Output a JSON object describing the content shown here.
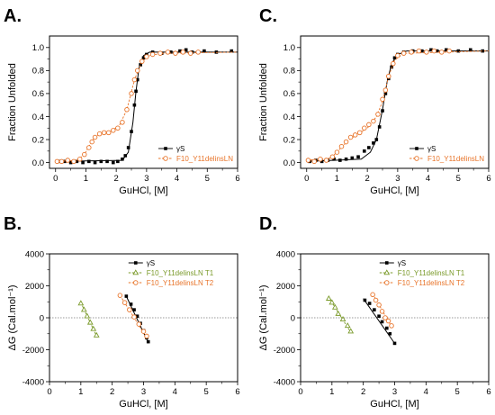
{
  "chart_data": [
    {
      "panel": "A.",
      "type": "line",
      "xlabel": "GuHCl, [M]",
      "ylabel": "Fraction Unfolded",
      "xlim": [
        -0.2,
        6
      ],
      "ylim": [
        -0.05,
        1.1
      ],
      "xticks": [
        "0",
        "1",
        "2",
        "3",
        "4",
        "5",
        "6"
      ],
      "yticks": [
        "0.0",
        "0.2",
        "0.4",
        "0.6",
        "0.8",
        "1.0"
      ],
      "legend_position": "bottom-right",
      "colors": {
        "gammaS": "#000000",
        "mutant": "#e8742a"
      },
      "series": [
        {
          "name": "γS",
          "marker": "filled-square",
          "points": [
            [
              0.1,
              0.01
            ],
            [
              0.3,
              0.01
            ],
            [
              0.5,
              0.0
            ],
            [
              0.7,
              0.01
            ],
            [
              0.9,
              0.0
            ],
            [
              1.1,
              0.01
            ],
            [
              1.3,
              0.0
            ],
            [
              1.5,
              0.01
            ],
            [
              1.7,
              0.01
            ],
            [
              1.9,
              0.0
            ],
            [
              2.05,
              0.01
            ],
            [
              2.2,
              0.03
            ],
            [
              2.3,
              0.06
            ],
            [
              2.4,
              0.13
            ],
            [
              2.5,
              0.27
            ],
            [
              2.6,
              0.5
            ],
            [
              2.65,
              0.62
            ],
            [
              2.7,
              0.72
            ],
            [
              2.8,
              0.85
            ],
            [
              2.9,
              0.91
            ],
            [
              3.0,
              0.94
            ],
            [
              3.2,
              0.96
            ],
            [
              3.5,
              0.95
            ],
            [
              3.8,
              0.96
            ],
            [
              4.1,
              0.97
            ],
            [
              4.3,
              0.98
            ],
            [
              4.5,
              0.96
            ],
            [
              4.9,
              0.97
            ],
            [
              5.3,
              0.96
            ],
            [
              5.8,
              0.97
            ]
          ],
          "fit": [
            [
              0,
              0.01
            ],
            [
              2.2,
              0.02
            ],
            [
              2.4,
              0.09
            ],
            [
              2.55,
              0.35
            ],
            [
              2.65,
              0.62
            ],
            [
              2.75,
              0.82
            ],
            [
              2.9,
              0.93
            ],
            [
              3.1,
              0.96
            ],
            [
              6,
              0.96
            ]
          ]
        },
        {
          "name": "F10_Y11delinsLN",
          "marker": "open-circle",
          "points": [
            [
              0.05,
              0.01
            ],
            [
              0.2,
              0.01
            ],
            [
              0.4,
              0.02
            ],
            [
              0.6,
              0.01
            ],
            [
              0.8,
              0.03
            ],
            [
              0.95,
              0.07
            ],
            [
              1.1,
              0.13
            ],
            [
              1.2,
              0.18
            ],
            [
              1.3,
              0.22
            ],
            [
              1.45,
              0.25
            ],
            [
              1.6,
              0.26
            ],
            [
              1.75,
              0.26
            ],
            [
              1.9,
              0.28
            ],
            [
              2.05,
              0.3
            ],
            [
              2.2,
              0.35
            ],
            [
              2.35,
              0.46
            ],
            [
              2.5,
              0.6
            ],
            [
              2.6,
              0.72
            ],
            [
              2.7,
              0.8
            ],
            [
              2.85,
              0.88
            ],
            [
              3.0,
              0.92
            ],
            [
              3.2,
              0.94
            ],
            [
              3.45,
              0.95
            ],
            [
              3.7,
              0.96
            ],
            [
              3.95,
              0.95
            ],
            [
              4.2,
              0.96
            ],
            [
              4.45,
              0.95
            ],
            [
              4.7,
              0.96
            ]
          ],
          "fit": [
            [
              0,
              0.01
            ],
            [
              0.7,
              0.02
            ],
            [
              0.95,
              0.07
            ],
            [
              1.2,
              0.19
            ],
            [
              1.45,
              0.25
            ],
            [
              1.8,
              0.27
            ],
            [
              2.1,
              0.32
            ],
            [
              2.35,
              0.46
            ],
            [
              2.6,
              0.72
            ],
            [
              2.85,
              0.88
            ],
            [
              3.1,
              0.93
            ],
            [
              3.5,
              0.95
            ],
            [
              6,
              0.96
            ]
          ]
        }
      ]
    },
    {
      "panel": "C.",
      "type": "line",
      "xlabel": "GuHCl, [M]",
      "ylabel": "Fraction Unfolded",
      "xlim": [
        -0.2,
        6
      ],
      "ylim": [
        -0.05,
        1.1
      ],
      "xticks": [
        "0",
        "1",
        "2",
        "3",
        "4",
        "5",
        "6"
      ],
      "yticks": [
        "0.0",
        "0.2",
        "0.4",
        "0.6",
        "0.8",
        "1.0"
      ],
      "legend_position": "bottom-right",
      "colors": {
        "gammaS": "#000000",
        "mutant": "#e8742a"
      },
      "series": [
        {
          "name": "γS",
          "marker": "filled-square",
          "points": [
            [
              0.1,
              0.01
            ],
            [
              0.3,
              0.02
            ],
            [
              0.5,
              0.01
            ],
            [
              0.7,
              0.02
            ],
            [
              0.9,
              0.03
            ],
            [
              1.1,
              0.02
            ],
            [
              1.3,
              0.03
            ],
            [
              1.5,
              0.04
            ],
            [
              1.7,
              0.05
            ],
            [
              1.9,
              0.1
            ],
            [
              2.05,
              0.13
            ],
            [
              2.2,
              0.17
            ],
            [
              2.3,
              0.2
            ],
            [
              2.4,
              0.31
            ],
            [
              2.5,
              0.45
            ],
            [
              2.6,
              0.6
            ],
            [
              2.7,
              0.73
            ],
            [
              2.8,
              0.83
            ],
            [
              2.9,
              0.91
            ],
            [
              3.0,
              0.94
            ],
            [
              3.2,
              0.96
            ],
            [
              3.5,
              0.97
            ],
            [
              3.8,
              0.97
            ],
            [
              4.1,
              0.98
            ],
            [
              4.3,
              0.97
            ],
            [
              4.6,
              0.98
            ],
            [
              5.0,
              0.97
            ],
            [
              5.4,
              0.98
            ],
            [
              5.8,
              0.97
            ]
          ],
          "fit": [
            [
              0,
              0.01
            ],
            [
              1.8,
              0.03
            ],
            [
              2.1,
              0.09
            ],
            [
              2.3,
              0.2
            ],
            [
              2.5,
              0.46
            ],
            [
              2.65,
              0.7
            ],
            [
              2.8,
              0.86
            ],
            [
              3.0,
              0.94
            ],
            [
              3.3,
              0.97
            ],
            [
              6,
              0.97
            ]
          ]
        },
        {
          "name": "F10_Y11delinsLN",
          "marker": "open-circle",
          "points": [
            [
              0.05,
              0.02
            ],
            [
              0.25,
              0.01
            ],
            [
              0.45,
              0.03
            ],
            [
              0.65,
              0.02
            ],
            [
              0.85,
              0.05
            ],
            [
              1.0,
              0.09
            ],
            [
              1.15,
              0.14
            ],
            [
              1.3,
              0.18
            ],
            [
              1.45,
              0.22
            ],
            [
              1.6,
              0.24
            ],
            [
              1.75,
              0.26
            ],
            [
              1.9,
              0.3
            ],
            [
              2.05,
              0.33
            ],
            [
              2.2,
              0.36
            ],
            [
              2.35,
              0.42
            ],
            [
              2.5,
              0.55
            ],
            [
              2.6,
              0.63
            ],
            [
              2.7,
              0.75
            ],
            [
              2.85,
              0.86
            ],
            [
              3.0,
              0.93
            ],
            [
              3.2,
              0.95
            ],
            [
              3.45,
              0.96
            ],
            [
              3.7,
              0.97
            ],
            [
              3.95,
              0.96
            ],
            [
              4.2,
              0.97
            ],
            [
              4.45,
              0.96
            ],
            [
              4.7,
              0.97
            ]
          ],
          "fit": [
            [
              0,
              0.02
            ],
            [
              0.8,
              0.04
            ],
            [
              1.1,
              0.12
            ],
            [
              1.4,
              0.2
            ],
            [
              1.7,
              0.25
            ],
            [
              2.0,
              0.3
            ],
            [
              2.3,
              0.4
            ],
            [
              2.5,
              0.53
            ],
            [
              2.7,
              0.75
            ],
            [
              2.9,
              0.89
            ],
            [
              3.2,
              0.95
            ],
            [
              6,
              0.97
            ]
          ]
        }
      ]
    },
    {
      "panel": "B.",
      "type": "scatter",
      "xlabel": "GuHCl, [M]",
      "ylabel": "ΔG (Cal.mol⁻¹)",
      "xlim": [
        0,
        6
      ],
      "ylim": [
        -4000,
        4000
      ],
      "xticks": [
        "0",
        "1",
        "2",
        "3",
        "4",
        "5",
        "6"
      ],
      "yticks": [
        "4000",
        "2000",
        "0",
        "-2000",
        "-4000"
      ],
      "zero_line": true,
      "legend_position": "top-right",
      "colors": {
        "gammaS": "#000000",
        "T1": "#7a9a2a",
        "T2": "#e8742a"
      },
      "series": [
        {
          "name": "γS",
          "marker": "filled-square",
          "points": [
            [
              2.45,
              1350
            ],
            [
              2.6,
              850
            ],
            [
              2.7,
              500
            ],
            [
              2.8,
              100
            ],
            [
              2.9,
              -350
            ],
            [
              3.0,
              -800
            ],
            [
              3.1,
              -1250
            ],
            [
              3.15,
              -1500
            ]
          ],
          "fit": [
            [
              2.45,
              1350
            ],
            [
              3.15,
              -1550
            ]
          ]
        },
        {
          "name": "F10_Y11delinsLN T1",
          "marker": "open-triangle",
          "points": [
            [
              1.0,
              900
            ],
            [
              1.1,
              500
            ],
            [
              1.2,
              100
            ],
            [
              1.3,
              -300
            ],
            [
              1.4,
              -700
            ],
            [
              1.5,
              -1100
            ]
          ],
          "fit": [
            [
              1.0,
              950
            ],
            [
              1.5,
              -1150
            ]
          ]
        },
        {
          "name": "F10_Y11delinsLN T2",
          "marker": "open-circle",
          "points": [
            [
              2.25,
              1400
            ],
            [
              2.4,
              950
            ],
            [
              2.55,
              500
            ],
            [
              2.7,
              50
            ],
            [
              2.85,
              -400
            ],
            [
              3.0,
              -850
            ],
            [
              3.1,
              -1150
            ]
          ],
          "fit": [
            [
              2.25,
              1400
            ],
            [
              3.1,
              -1250
            ]
          ]
        }
      ]
    },
    {
      "panel": "D.",
      "type": "scatter",
      "xlabel": "GuHCl, [M]",
      "ylabel": "ΔG (Cal.mol⁻¹)",
      "xlim": [
        0,
        6
      ],
      "ylim": [
        -4000,
        4000
      ],
      "xticks": [
        "0",
        "1",
        "2",
        "3",
        "4",
        "5",
        "6"
      ],
      "yticks": [
        "4000",
        "2000",
        "0",
        "-2000",
        "-4000"
      ],
      "zero_line": true,
      "legend_position": "top-right",
      "colors": {
        "gammaS": "#000000",
        "T1": "#7a9a2a",
        "T2": "#e8742a"
      },
      "series": [
        {
          "name": "γS",
          "marker": "filled-square",
          "points": [
            [
              2.05,
              1100
            ],
            [
              2.2,
              900
            ],
            [
              2.35,
              500
            ],
            [
              2.5,
              100
            ],
            [
              2.6,
              -250
            ],
            [
              2.75,
              -650
            ],
            [
              2.85,
              -1000
            ],
            [
              3.0,
              -1600
            ]
          ],
          "fit": [
            [
              2.0,
              1200
            ],
            [
              3.0,
              -1600
            ]
          ]
        },
        {
          "name": "F10_Y11delinsLN T1",
          "marker": "open-triangle",
          "points": [
            [
              0.9,
              1200
            ],
            [
              1.0,
              950
            ],
            [
              1.1,
              650
            ],
            [
              1.2,
              250
            ],
            [
              1.35,
              -100
            ],
            [
              1.5,
              -500
            ],
            [
              1.6,
              -850
            ]
          ],
          "fit": [
            [
              0.9,
              1250
            ],
            [
              1.6,
              -900
            ]
          ]
        },
        {
          "name": "F10_Y11delinsLN T2",
          "marker": "open-circle",
          "points": [
            [
              2.3,
              1450
            ],
            [
              2.4,
              1100
            ],
            [
              2.5,
              800
            ],
            [
              2.6,
              400
            ],
            [
              2.7,
              0
            ],
            [
              2.8,
              -200
            ],
            [
              2.9,
              -500
            ]
          ],
          "fit": [
            [
              2.3,
              1500
            ],
            [
              2.9,
              -550
            ]
          ]
        }
      ]
    }
  ]
}
